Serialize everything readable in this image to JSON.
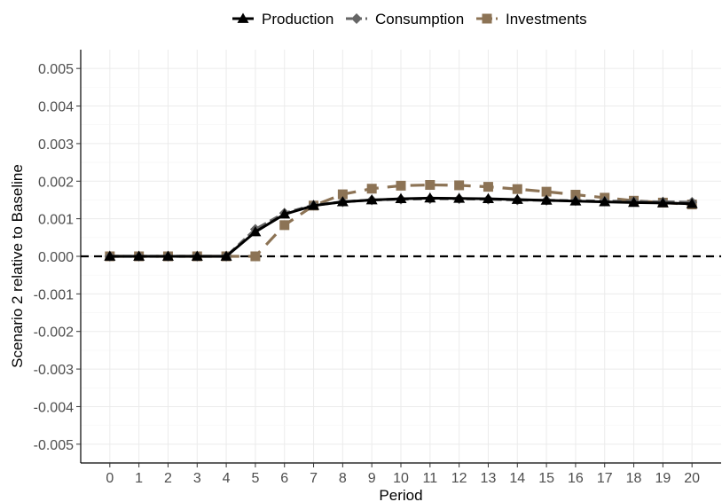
{
  "chart_data": {
    "type": "line",
    "xlabel": "Period",
    "ylabel": "Scenario 2 relative to Baseline",
    "x": [
      0,
      1,
      2,
      3,
      4,
      5,
      6,
      7,
      8,
      9,
      10,
      11,
      12,
      13,
      14,
      15,
      16,
      17,
      18,
      19,
      20
    ],
    "xlim": [
      -1,
      21
    ],
    "ylim": [
      -0.0055,
      0.0055
    ],
    "x_ticks": [
      0,
      1,
      2,
      3,
      4,
      5,
      6,
      7,
      8,
      9,
      10,
      11,
      12,
      13,
      14,
      15,
      16,
      17,
      18,
      19,
      20
    ],
    "x_tick_labels": [
      "0",
      "1",
      "2",
      "3",
      "4",
      "5",
      "6",
      "7",
      "8",
      "9",
      "10",
      "11",
      "12",
      "13",
      "14",
      "15",
      "16",
      "17",
      "18",
      "19",
      "20"
    ],
    "y_ticks": [
      0.005,
      0.004,
      0.003,
      0.002,
      0.001,
      0.0,
      -0.001,
      -0.002,
      -0.003,
      -0.004,
      -0.005
    ],
    "y_tick_labels": [
      "0.005",
      "0.004",
      "0.003",
      "0.002",
      "0.001",
      "0.000",
      "-0.001",
      "-0.002",
      "-0.003",
      "-0.004",
      "-0.005"
    ],
    "reference_line": {
      "y": 0,
      "style": "dashed"
    },
    "grid": true,
    "legend_position": "top",
    "series": [
      {
        "name": "Production",
        "color": "#000000",
        "line_style": "solid",
        "marker": "triangle",
        "values": [
          0,
          0,
          0,
          0,
          0,
          0.00065,
          0.00112,
          0.00135,
          0.00145,
          0.0015,
          0.00153,
          0.00155,
          0.00154,
          0.00153,
          0.00151,
          0.00149,
          0.00147,
          0.00145,
          0.00143,
          0.00142,
          0.0014
        ]
      },
      {
        "name": "Consumption",
        "color": "#666666",
        "line_style": "dashed",
        "marker": "diamond",
        "values": [
          0,
          0,
          0,
          0,
          0,
          0.00072,
          0.00115,
          0.00136,
          0.00145,
          0.0015,
          0.00152,
          0.00153,
          0.00153,
          0.00152,
          0.0015,
          0.00149,
          0.00148,
          0.00147,
          0.00146,
          0.00145,
          0.00144
        ]
      },
      {
        "name": "Investments",
        "color": "#8c7355",
        "line_style": "dashed",
        "marker": "square",
        "values": [
          0,
          0,
          0,
          0,
          0,
          0,
          0.00083,
          0.00135,
          0.00165,
          0.0018,
          0.00188,
          0.0019,
          0.00189,
          0.00185,
          0.00179,
          0.00172,
          0.00164,
          0.00156,
          0.00148,
          0.00143,
          0.00138
        ]
      }
    ]
  }
}
